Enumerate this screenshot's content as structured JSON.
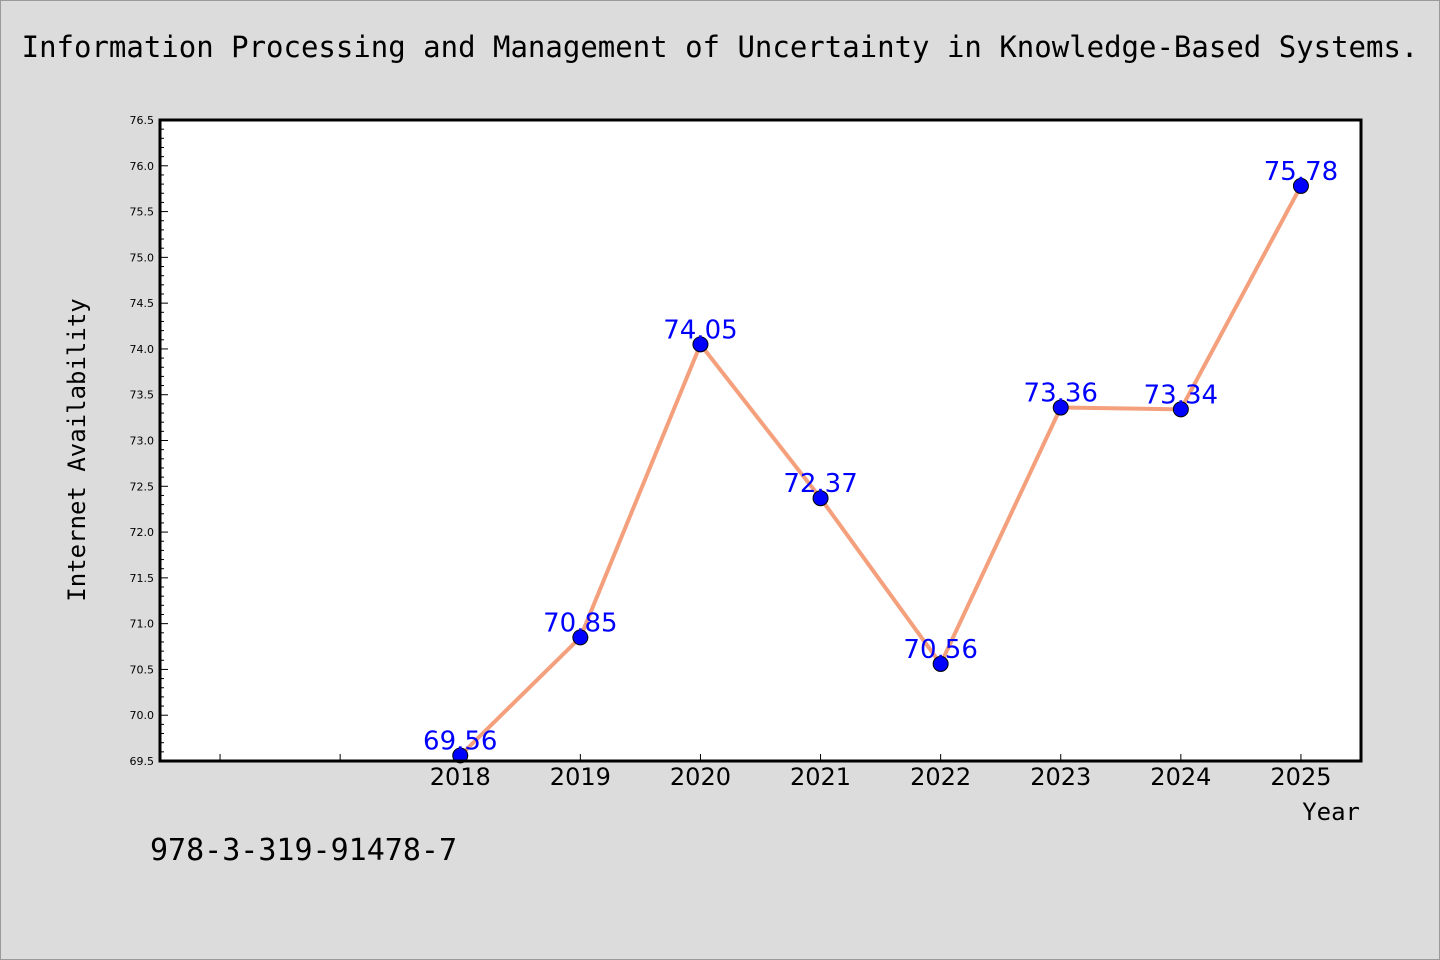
{
  "header": {
    "title": "Information Processing and Management of Uncertainty in Knowledge-Based Systems."
  },
  "footer": {
    "isbn": "978-3-319-91478-7"
  },
  "chart_data": {
    "type": "line",
    "title": "Information Processing and Management of Uncertainty in Knowledge-Based Systems.",
    "xlabel": "Year",
    "ylabel": "Internet Availability",
    "x": [
      2018,
      2019,
      2020,
      2021,
      2022,
      2023,
      2024,
      2025
    ],
    "x_tick_labels": [
      "2018",
      "2019",
      "2020",
      "2021",
      "2022",
      "2023",
      "2024",
      "2025"
    ],
    "series": [
      {
        "values": [
          69.56,
          70.85,
          74.05,
          72.37,
          70.56,
          73.36,
          73.34,
          75.78
        ],
        "labels": [
          "69.56",
          "70.85",
          "74.05",
          "72.37",
          "70.56",
          "73.36",
          "73.34",
          "75.78"
        ],
        "line_color": "#f4a07c",
        "marker_color": "#0000ff"
      }
    ],
    "xlim": [
      2015.5,
      2025.5
    ],
    "ylim": [
      69.5,
      76.5
    ],
    "y_ticks": [
      "69.5",
      "70.0",
      "70.5",
      "71.0",
      "71.5",
      "72.0",
      "72.5",
      "73.0",
      "73.5",
      "74.0",
      "74.5",
      "75.0",
      "75.5",
      "76.0",
      "76.5"
    ],
    "grid": false,
    "legend": "none"
  }
}
